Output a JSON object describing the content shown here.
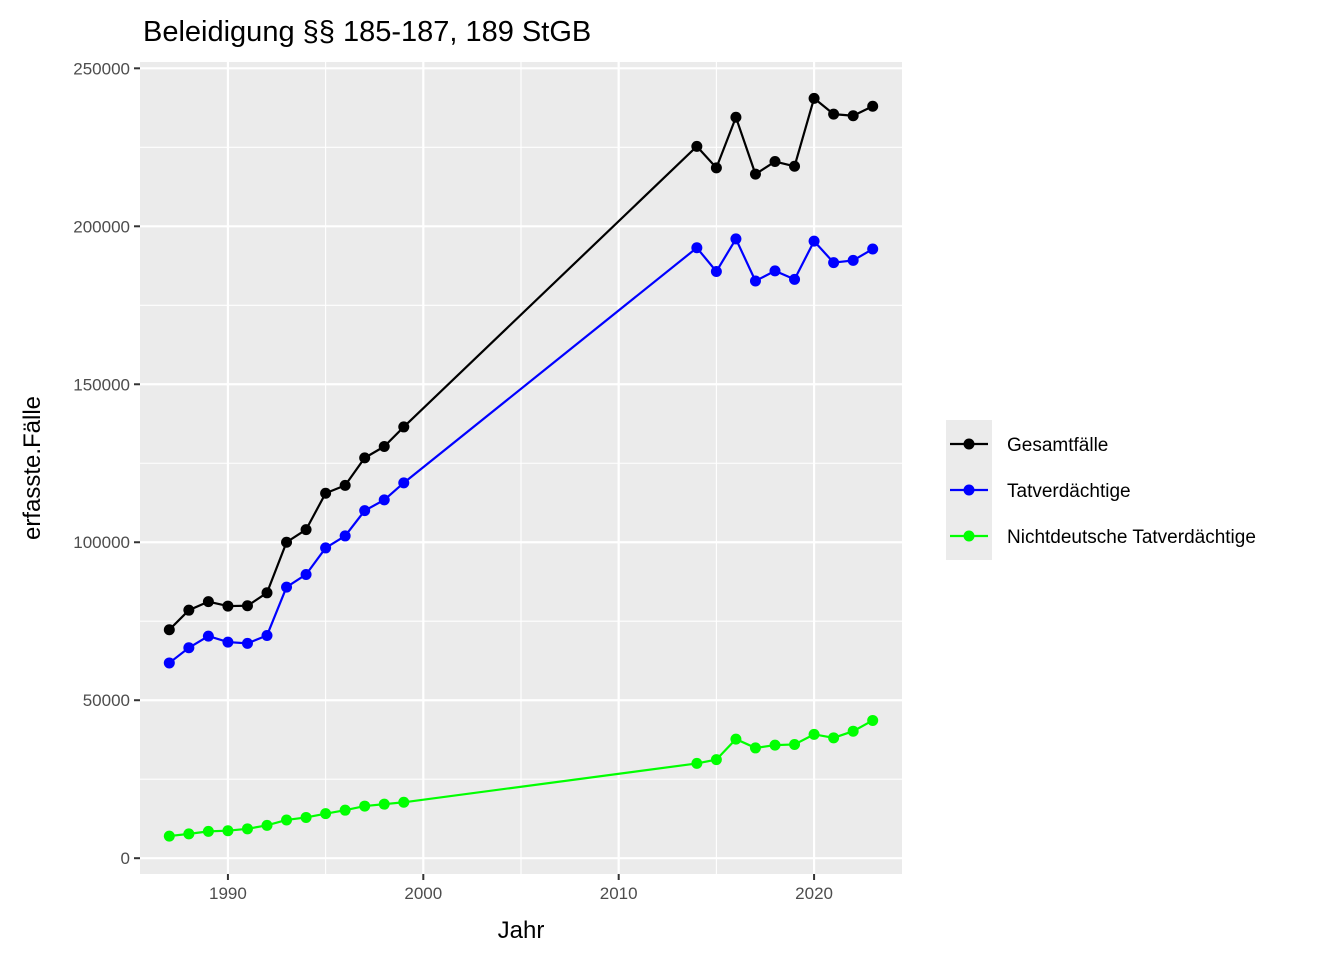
{
  "chart_data": {
    "type": "line",
    "title": "Beleidigung §§ 185-187, 189 StGB",
    "xlabel": "Jahr",
    "ylabel": "erfasste.Fälle",
    "xlim": [
      1985.5,
      2024.5
    ],
    "ylim": [
      -5000,
      252000
    ],
    "xticks": [
      1990,
      2000,
      2010,
      2020
    ],
    "yticks": [
      0,
      50000,
      100000,
      150000,
      200000,
      250000
    ],
    "ytick_labels": [
      "0",
      "50000",
      "100000",
      "150000",
      "200000",
      "250000"
    ],
    "grid": true,
    "legend_position": "right",
    "x": [
      1987,
      1988,
      1989,
      1990,
      1991,
      1992,
      1993,
      1994,
      1995,
      1996,
      1997,
      1998,
      1999,
      2014,
      2015,
      2016,
      2017,
      2018,
      2019,
      2020,
      2021,
      2022,
      2023
    ],
    "series": [
      {
        "name": "Gesamtfälle",
        "color": "#000000",
        "values": [
          72300,
          78500,
          81200,
          79800,
          79900,
          84000,
          100000,
          104000,
          115500,
          118000,
          126700,
          130300,
          136500,
          225300,
          218500,
          234500,
          216500,
          220500,
          219000,
          240500,
          235500,
          235000,
          238000
        ]
      },
      {
        "name": "Tatverdächtige",
        "color": "#0000ff",
        "values": [
          61800,
          66600,
          70300,
          68400,
          68000,
          70500,
          85800,
          89800,
          98200,
          102000,
          110000,
          113400,
          118800,
          193200,
          185700,
          196000,
          182700,
          185900,
          183200,
          195300,
          188500,
          189200,
          192800
        ]
      },
      {
        "name": "Nichtdeutsche Tatverdächtige",
        "color": "#00ff00",
        "values": [
          7000,
          7700,
          8500,
          8700,
          9300,
          10400,
          12100,
          12900,
          14100,
          15200,
          16500,
          17100,
          17700,
          30000,
          31200,
          37700,
          34900,
          35800,
          36000,
          39200,
          38100,
          40200,
          43600
        ]
      }
    ]
  }
}
